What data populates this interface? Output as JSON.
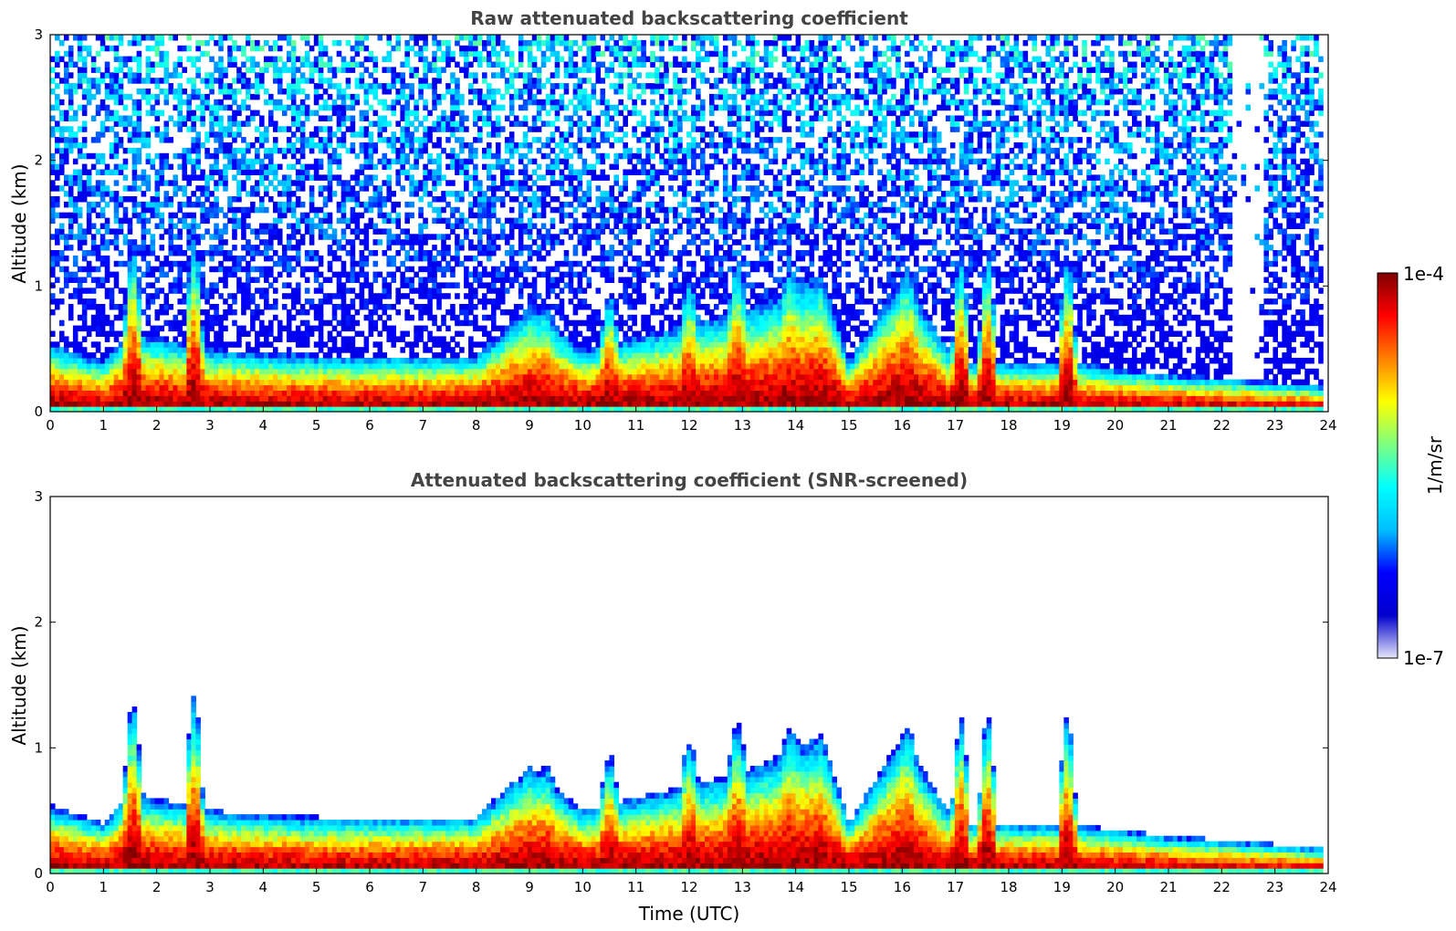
{
  "chart_data": [
    {
      "type": "heatmap",
      "title": "Raw attenuated backscattering coefficient",
      "xlabel": "",
      "ylabel": "Altitude (km)",
      "xlim": [
        0,
        24
      ],
      "ylim": [
        0,
        3
      ],
      "xticks": [
        "0",
        "1",
        "2",
        "3",
        "4",
        "5",
        "6",
        "7",
        "8",
        "9",
        "10",
        "11",
        "12",
        "13",
        "14",
        "15",
        "16",
        "17",
        "18",
        "19",
        "20",
        "21",
        "22",
        "23",
        "24"
      ],
      "yticks": [
        "0",
        "1",
        "2",
        "3"
      ],
      "colormap": "jet",
      "color_scale": "log",
      "screening": "none",
      "boundary_layer_top_km": [
        {
          "t": 0,
          "h": 0.55
        },
        {
          "t": 1,
          "h": 0.4
        },
        {
          "t": 1.5,
          "h": 0.65
        },
        {
          "t": 2,
          "h": 0.6
        },
        {
          "t": 3,
          "h": 0.5
        },
        {
          "t": 5,
          "h": 0.45
        },
        {
          "t": 8,
          "h": 0.45
        },
        {
          "t": 9,
          "h": 0.85
        },
        {
          "t": 10,
          "h": 0.5
        },
        {
          "t": 11,
          "h": 0.6
        },
        {
          "t": 13,
          "h": 0.8
        },
        {
          "t": 14.5,
          "h": 1.1
        },
        {
          "t": 15,
          "h": 0.4
        },
        {
          "t": 16,
          "h": 1.1
        },
        {
          "t": 17,
          "h": 0.4
        },
        {
          "t": 19,
          "h": 0.4
        },
        {
          "t": 21,
          "h": 0.3
        },
        {
          "t": 24,
          "h": 0.2
        }
      ]
    },
    {
      "type": "heatmap",
      "title": "Attenuated backscattering coefficient (SNR-screened)",
      "xlabel": "Time (UTC)",
      "ylabel": "Altitude (km)",
      "xlim": [
        0,
        24
      ],
      "ylim": [
        0,
        3
      ],
      "xticks": [
        "0",
        "1",
        "2",
        "3",
        "4",
        "5",
        "6",
        "7",
        "8",
        "9",
        "10",
        "11",
        "12",
        "13",
        "14",
        "15",
        "16",
        "17",
        "18",
        "19",
        "20",
        "21",
        "22",
        "23",
        "24"
      ],
      "yticks": [
        "0",
        "1",
        "2",
        "3"
      ],
      "colormap": "jet",
      "color_scale": "log",
      "screening": "SNR",
      "plumes": [
        {
          "t": 1.55,
          "top_km": 1.35
        },
        {
          "t": 2.7,
          "top_km": 1.4
        },
        {
          "t": 9.3,
          "top_km": 0.85
        },
        {
          "t": 10.5,
          "top_km": 0.95
        },
        {
          "t": 12,
          "top_km": 1.05
        },
        {
          "t": 12.9,
          "top_km": 1.2
        },
        {
          "t": 13.9,
          "top_km": 1.15
        },
        {
          "t": 16.1,
          "top_km": 1.15
        },
        {
          "t": 17.1,
          "top_km": 1.25
        },
        {
          "t": 17.6,
          "top_km": 1.25
        },
        {
          "t": 19.1,
          "top_km": 1.25
        }
      ]
    }
  ],
  "colorbar": {
    "label": "1/m/sr",
    "max_label": "1e-4",
    "min_label": "1e-7",
    "vmin": 1e-07,
    "vmax": 0.0001,
    "stops": [
      "#e6e6fa",
      "#0000cd",
      "#0000ff",
      "#00bfff",
      "#00ffff",
      "#7fff7f",
      "#ffff00",
      "#ff7f00",
      "#ff0000",
      "#7f0000"
    ]
  }
}
